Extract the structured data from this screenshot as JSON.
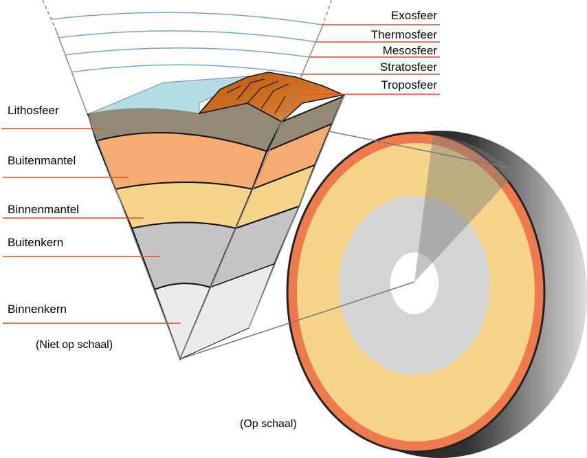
{
  "atmosphere_labels": [
    "Exosfeer",
    "Thermosfeer",
    "Mesosfeer",
    "Stratosfeer",
    "Troposfeer"
  ],
  "interior_labels": [
    "Lithosfeer",
    "Buitenmantel",
    "Binnenmantel",
    "Buitenkern",
    "Binnenkern"
  ],
  "cone_caption": "(Niet op schaal)",
  "sphere_caption": "(Op schaal)",
  "colors": {
    "leader_line": "#f0502a",
    "atmosphere_line": "#5b9bd5",
    "ocean": "#b3dde6",
    "mountains": "#c8661a",
    "lithosphere": "#928a74",
    "outer_mantle": "#f5ab72",
    "inner_mantle": "#f6d58a",
    "outer_core": "#c4c4c4",
    "inner_core": "#ebebeb",
    "crust_ring": "#ef7a4e",
    "shell": "#222222"
  }
}
